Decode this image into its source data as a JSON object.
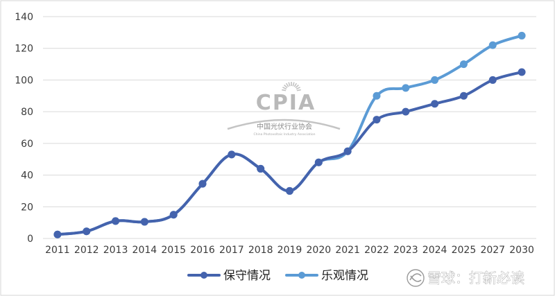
{
  "chart_data": {
    "type": "line",
    "categories": [
      "2011",
      "2012",
      "2013",
      "2014",
      "2015",
      "2016",
      "2017",
      "2018",
      "2019",
      "2020",
      "2021",
      "2022",
      "2023",
      "2024",
      "2025",
      "2027",
      "2030"
    ],
    "series": [
      {
        "name": "保守情况",
        "color": "#4463ad",
        "values": [
          2.5,
          4.5,
          11,
          10.5,
          15,
          34.5,
          53,
          44,
          30,
          48,
          55,
          75,
          80,
          85,
          90,
          100,
          105
        ]
      },
      {
        "name": "乐观情况",
        "color": "#5b9bd5",
        "values": [
          2.5,
          4.5,
          11,
          10.5,
          15,
          34.5,
          53,
          44,
          30,
          48,
          55,
          90,
          95,
          100,
          110,
          122,
          128
        ]
      }
    ],
    "ylim": [
      0,
      140
    ],
    "yticks": [
      "0",
      "20",
      "40",
      "60",
      "80",
      "100",
      "120",
      "140"
    ],
    "grid": true,
    "legend": "bottom"
  },
  "watermark": {
    "logo_text": "CPIA",
    "org_cn": "中国光伏行业协会",
    "org_en": "China Photovoltaic Industry Association",
    "color": "#b9b9b9"
  },
  "source_tag": {
    "text": "雪球：打新必读"
  }
}
